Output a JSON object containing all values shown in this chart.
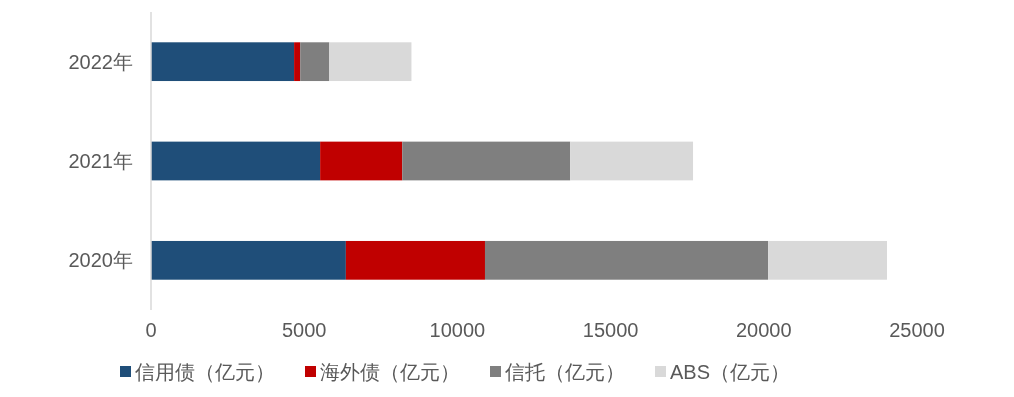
{
  "chart_data": {
    "type": "bar",
    "orientation": "horizontal",
    "stacked": true,
    "categories": [
      "2022年",
      "2021年",
      "2020年"
    ],
    "series": [
      {
        "name": "信用债（亿元）",
        "color": "#1f4e79",
        "values": [
          4670,
          5520,
          6360
        ]
      },
      {
        "name": "海外债（亿元）",
        "color": "#c00000",
        "values": [
          200,
          2680,
          4540
        ]
      },
      {
        "name": "信托（亿元）",
        "color": "#7f7f7f",
        "values": [
          950,
          5480,
          9240
        ]
      },
      {
        "name": "ABS（亿元）",
        "color": "#d9d9d9",
        "values": [
          2680,
          4010,
          3880
        ]
      }
    ],
    "xlim": [
      0,
      25000
    ],
    "xticks": [
      0,
      5000,
      10000,
      15000,
      20000,
      25000
    ],
    "grid": false,
    "legend": "bottom"
  }
}
